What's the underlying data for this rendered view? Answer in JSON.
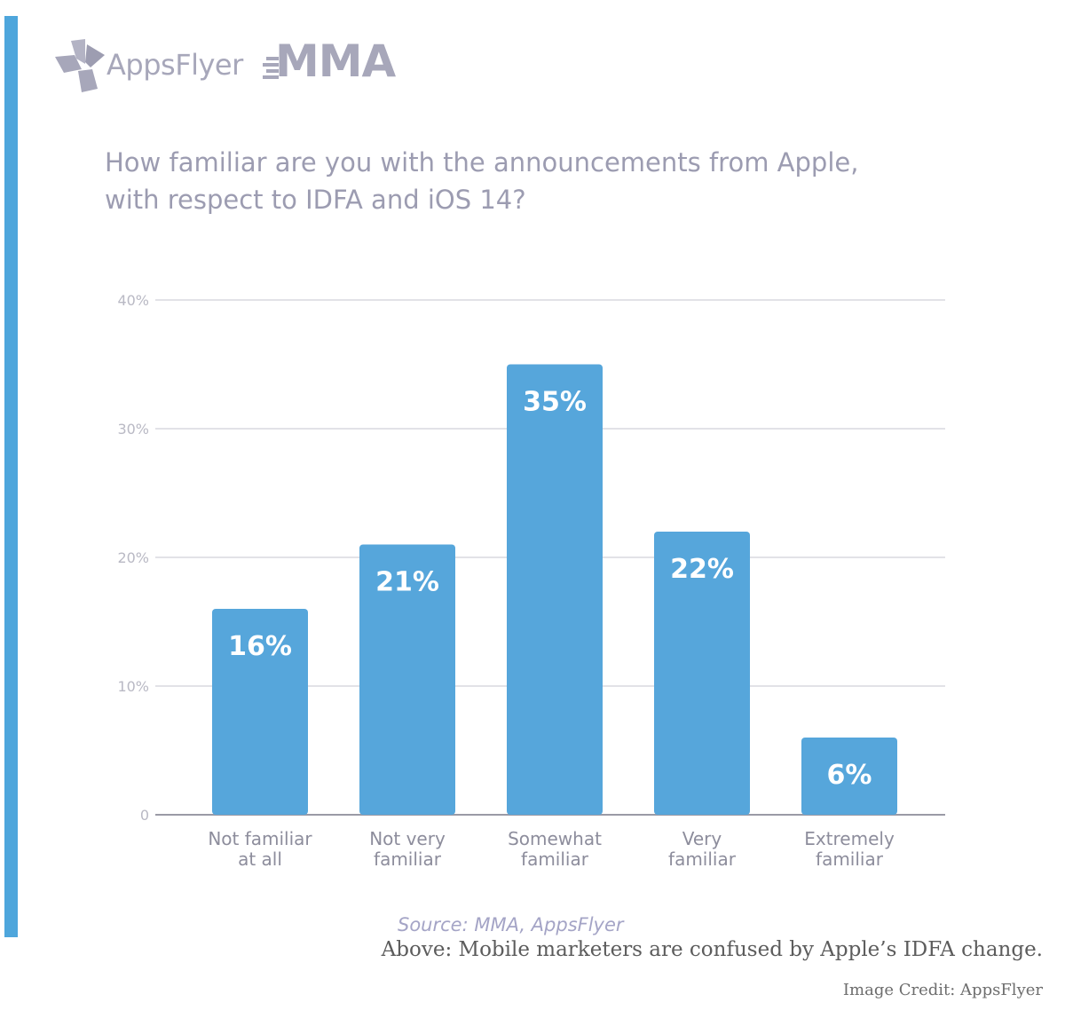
{
  "logos": {
    "appsflyer": "AppsFlyer",
    "mma": "MMA"
  },
  "chart_data": {
    "type": "bar",
    "title_lines": [
      "How familiar are you with the announcements from Apple,",
      "with respect to IDFA and iOS 14?"
    ],
    "categories": [
      [
        "Not familiar",
        "at all"
      ],
      [
        "Not very",
        "familiar"
      ],
      [
        "Somewhat",
        "familiar"
      ],
      [
        "Very",
        "familiar"
      ],
      [
        "Extremely",
        "familiar"
      ]
    ],
    "values": [
      16,
      21,
      35,
      22,
      6
    ],
    "value_labels": [
      "16%",
      "21%",
      "35%",
      "22%",
      "6%"
    ],
    "ylim": [
      0,
      40
    ],
    "yticks": [
      0,
      10,
      20,
      30,
      40
    ],
    "ytick_labels": [
      "0",
      "10%",
      "20%",
      "30%",
      "40%"
    ],
    "grid": true,
    "bar_color": "#56a6db",
    "source": "Source: MMA, AppsFlyer"
  },
  "caption": "Above: Mobile marketers are confused by Apple’s IDFA change.",
  "credit": "Image Credit: AppsFlyer",
  "colors": {
    "accent": "#4ea6dc",
    "logo": "#a7a7ba",
    "title": "#9c9cb1"
  }
}
